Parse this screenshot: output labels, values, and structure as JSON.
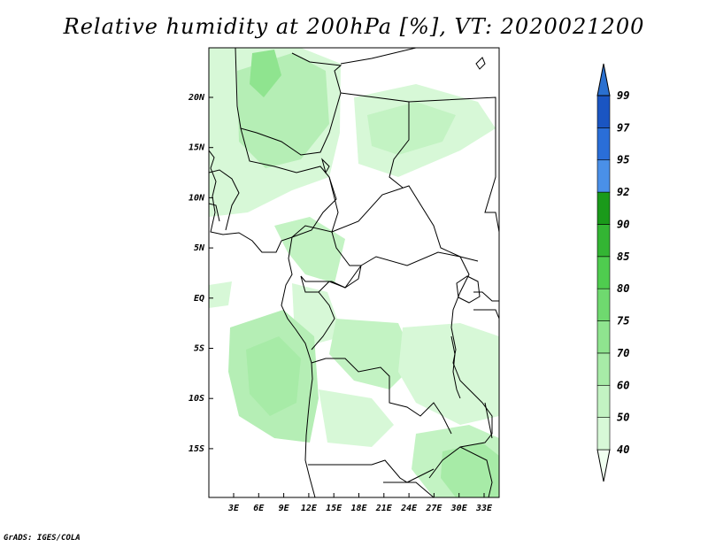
{
  "title": "Relative humidity at 200hPa [%], VT: 2020021200",
  "credit": "GrADS: IGES/COLA",
  "map": {
    "lat_ticks": [
      "20N",
      "15N",
      "10N",
      "5N",
      "EQ",
      "5S",
      "10S",
      "15S"
    ],
    "lon_ticks": [
      "3E",
      "6E",
      "9E",
      "12E",
      "15E",
      "18E",
      "21E",
      "24E",
      "27E",
      "30E",
      "33E"
    ]
  },
  "colorbar": {
    "levels": [
      "40",
      "50",
      "60",
      "70",
      "75",
      "80",
      "85",
      "90",
      "92",
      "95",
      "97",
      "99"
    ],
    "colors": [
      "#f0fff0",
      "#d7f8d7",
      "#c3f3c3",
      "#a7eba7",
      "#8fe48f",
      "#6fd96f",
      "#4fcc4f",
      "#33b533",
      "#1a9a1a",
      "#4a90e8",
      "#2a6ed8",
      "#1a55c2",
      "#2a70d0"
    ]
  }
}
